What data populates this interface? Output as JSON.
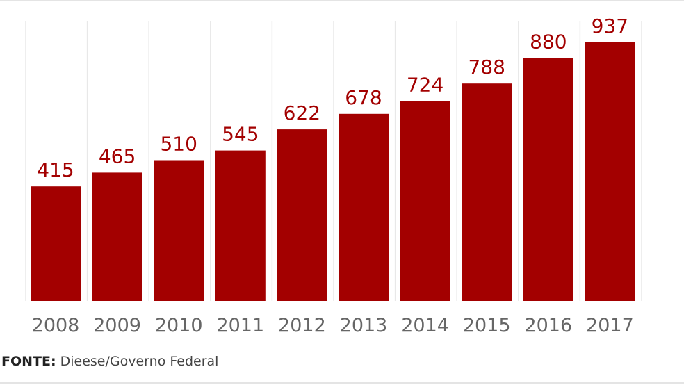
{
  "chart_data": {
    "type": "bar",
    "categories": [
      "2008",
      "2009",
      "2010",
      "2011",
      "2012",
      "2013",
      "2014",
      "2015",
      "2016",
      "2017"
    ],
    "values": [
      415,
      465,
      510,
      545,
      622,
      678,
      724,
      788,
      880,
      937
    ],
    "title": "",
    "xlabel": "",
    "ylabel": "",
    "ylim": [
      0,
      1000
    ],
    "grid": "vertical separators",
    "bar_color": "#a30000",
    "value_label_color": "#a30000",
    "tick_label_color": "#666666"
  },
  "source": {
    "label": "FONTE:",
    "text": "Dieese/Governo Federal"
  }
}
